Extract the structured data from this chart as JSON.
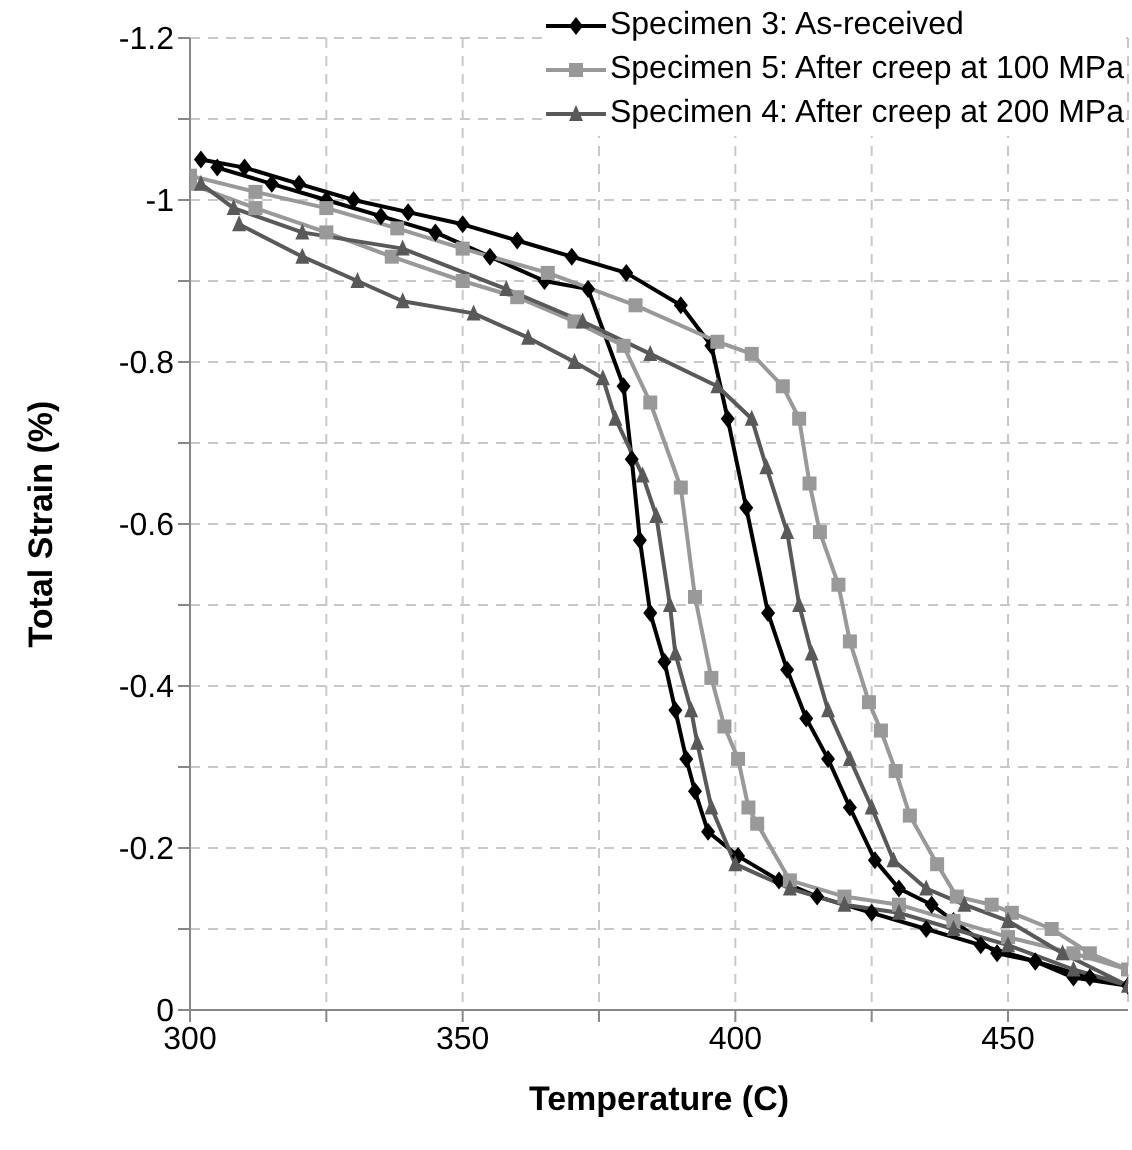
{
  "chart_data": {
    "type": "line",
    "xlabel": "Temperature (C)",
    "ylabel": "Total Strain (%)",
    "xlim": [
      300,
      472
    ],
    "xticks": [
      300,
      {
        "value": 325,
        "label": null
      },
      350,
      {
        "value": 375,
        "label": null
      },
      400,
      {
        "value": 425,
        "label": null
      },
      450
    ],
    "ylim": [
      0,
      -1.2
    ],
    "yticks": [
      0,
      {
        "value": -0.1,
        "label": null
      },
      -0.2,
      {
        "value": -0.3,
        "label": null
      },
      -0.4,
      {
        "value": -0.5,
        "label": null
      },
      -0.6,
      {
        "value": -0.7,
        "label": null
      },
      -0.8,
      {
        "value": -0.9,
        "label": null
      },
      -1,
      {
        "value": -1.1,
        "label": null
      },
      -1.2
    ],
    "grid": true,
    "legend": "top right",
    "line_style": "solid",
    "series": [
      {
        "name": "Specimen 3: As-received",
        "color": "#000000",
        "marker": "diamond",
        "x": [
          302,
          310,
          320,
          330,
          340,
          350,
          360,
          370,
          380,
          390,
          395.6,
          398.6,
          402,
          406,
          409.5,
          413,
          417,
          421,
          425.6,
          430,
          436,
          440,
          448,
          455,
          462,
          472,
          465,
          455,
          445,
          435,
          425,
          415,
          408,
          400.5,
          395,
          392.6,
          391,
          389,
          387,
          384.4,
          382.5,
          381,
          379.5,
          373,
          365,
          355,
          345,
          335,
          325,
          315,
          305
        ],
        "values": [
          -1.05,
          -1.04,
          -1.02,
          -1.0,
          -0.985,
          -0.97,
          -0.95,
          -0.93,
          -0.91,
          -0.87,
          -0.82,
          -0.73,
          -0.62,
          -0.49,
          -0.42,
          -0.36,
          -0.31,
          -0.25,
          -0.185,
          -0.15,
          -0.13,
          -0.11,
          -0.07,
          -0.06,
          -0.04,
          -0.03,
          -0.04,
          -0.06,
          -0.08,
          -0.1,
          -0.12,
          -0.14,
          -0.16,
          -0.19,
          -0.22,
          -0.27,
          -0.31,
          -0.37,
          -0.43,
          -0.49,
          -0.58,
          -0.68,
          -0.77,
          -0.89,
          -0.9,
          -0.93,
          -0.96,
          -0.98,
          -1.0,
          -1.02,
          -1.04
        ]
      },
      {
        "name": "Specimen 5: After creep at 100 MPa",
        "color": "#999999",
        "marker": "square",
        "x": [
          300,
          312,
          325,
          338,
          350,
          365.6,
          381.7,
          396.7,
          403,
          408.7,
          411.7,
          413.6,
          415.5,
          418.9,
          421,
          424.5,
          426.7,
          429.4,
          432,
          437,
          440.6,
          447,
          450.7,
          458,
          465,
          472,
          462,
          450,
          440,
          430,
          420,
          410,
          404,
          402.4,
          400.5,
          398,
          395.6,
          392.6,
          390,
          384.4,
          379.5,
          370.5,
          360,
          350,
          337,
          325,
          312,
          300
        ],
        "values": [
          -1.03,
          -1.01,
          -0.99,
          -0.965,
          -0.94,
          -0.91,
          -0.87,
          -0.825,
          -0.81,
          -0.77,
          -0.73,
          -0.65,
          -0.59,
          -0.525,
          -0.455,
          -0.38,
          -0.345,
          -0.295,
          -0.24,
          -0.18,
          -0.14,
          -0.13,
          -0.12,
          -0.1,
          -0.07,
          -0.05,
          -0.07,
          -0.09,
          -0.11,
          -0.13,
          -0.14,
          -0.16,
          -0.23,
          -0.25,
          -0.31,
          -0.35,
          -0.41,
          -0.51,
          -0.645,
          -0.75,
          -0.82,
          -0.85,
          -0.88,
          -0.9,
          -0.93,
          -0.96,
          -0.99,
          -1.02
        ]
      },
      {
        "name": "Specimen 4: After creep at 200 MPa",
        "color": "#595959",
        "marker": "triangle",
        "x": [
          302,
          308,
          320.6,
          339,
          358,
          372,
          384.4,
          396.7,
          403,
          405.7,
          409.5,
          411.7,
          414,
          417,
          421,
          425,
          429,
          435,
          442,
          450,
          460,
          472,
          462,
          450,
          440,
          430,
          420,
          410,
          400,
          395.6,
          393,
          391.9,
          389,
          388,
          385.5,
          383,
          378,
          375.7,
          370.5,
          362,
          352,
          339,
          330.7,
          320.6,
          309
        ],
        "values": [
          -1.02,
          -0.99,
          -0.96,
          -0.94,
          -0.89,
          -0.85,
          -0.81,
          -0.77,
          -0.73,
          -0.67,
          -0.59,
          -0.5,
          -0.44,
          -0.37,
          -0.31,
          -0.25,
          -0.185,
          -0.15,
          -0.13,
          -0.11,
          -0.07,
          -0.03,
          -0.05,
          -0.08,
          -0.1,
          -0.12,
          -0.13,
          -0.15,
          -0.18,
          -0.25,
          -0.33,
          -0.37,
          -0.44,
          -0.5,
          -0.61,
          -0.66,
          -0.73,
          -0.78,
          -0.8,
          -0.83,
          -0.86,
          -0.875,
          -0.9,
          -0.93,
          -0.97
        ]
      }
    ]
  }
}
